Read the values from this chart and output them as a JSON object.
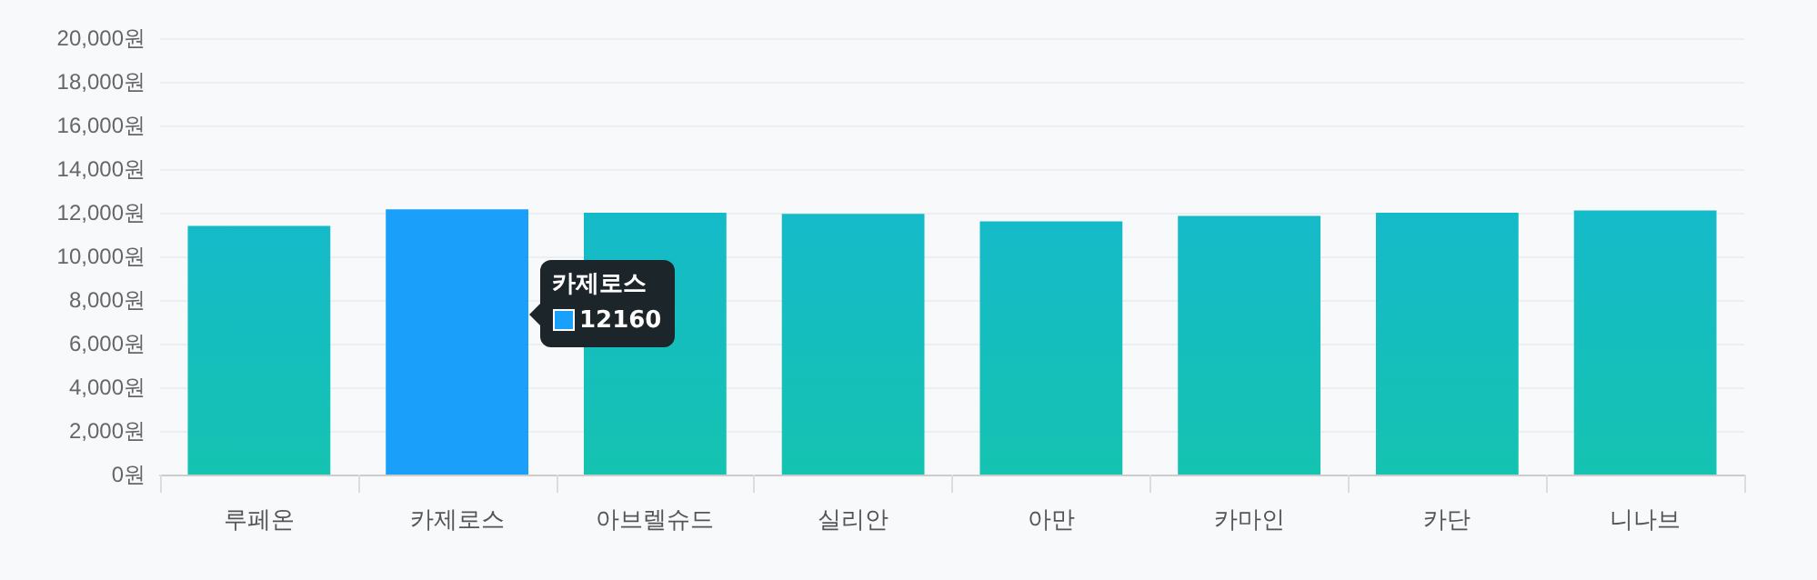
{
  "chart_data": {
    "type": "bar",
    "categories": [
      "루페온",
      "카제로스",
      "아브렐슈드",
      "실리안",
      "아만",
      "카마인",
      "카단",
      "니나브"
    ],
    "values": [
      11400,
      12160,
      12000,
      11950,
      11600,
      11850,
      12000,
      12100
    ],
    "colors": [
      "#15bac9",
      "#1a9ffa",
      "#15bac9",
      "#15bac9",
      "#15bac9",
      "#15bac9",
      "#15bac9",
      "#15bac9"
    ],
    "annotations": [
      "카제로스",
      "12160"
    ],
    "ylim": [
      0,
      20000
    ],
    "yticks": [
      {
        "value": 0,
        "label": "0원"
      },
      {
        "value": 2000,
        "label": "2,000원"
      },
      {
        "value": 4000,
        "label": "4,000원"
      },
      {
        "value": 6000,
        "label": "6,000원"
      },
      {
        "value": 8000,
        "label": "8,000원"
      },
      {
        "value": 10000,
        "label": "10,000원"
      },
      {
        "value": 12000,
        "label": "12,000원"
      },
      {
        "value": 14000,
        "label": "14,000원"
      },
      {
        "value": 16000,
        "label": "16,000원"
      },
      {
        "value": 18000,
        "label": "18,000원"
      },
      {
        "value": 20000,
        "label": "20,000원"
      }
    ],
    "grid": "y"
  }
}
